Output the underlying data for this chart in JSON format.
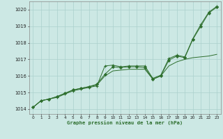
{
  "title": "Graphe pression niveau de la mer (hPa)",
  "bg_color": "#cce8e4",
  "grid_color": "#aad0cc",
  "line_color": "#2d6e2d",
  "x_ticks": [
    0,
    1,
    2,
    3,
    4,
    5,
    6,
    7,
    8,
    9,
    10,
    11,
    12,
    13,
    14,
    15,
    16,
    17,
    18,
    19,
    20,
    21,
    22,
    23
  ],
  "ylim": [
    1013.7,
    1020.5
  ],
  "yticks": [
    1014,
    1015,
    1016,
    1017,
    1018,
    1019,
    1020
  ],
  "series1_x": [
    0,
    1,
    2,
    3,
    4,
    5,
    6,
    7,
    8,
    9,
    10,
    11,
    12,
    13,
    14,
    15,
    16,
    17,
    18,
    19,
    20,
    21,
    22,
    23
  ],
  "series1_y": [
    1014.1,
    1014.5,
    1014.6,
    1014.7,
    1014.9,
    1015.1,
    1015.2,
    1015.3,
    1015.4,
    1016.6,
    1016.65,
    1016.55,
    1016.6,
    1016.6,
    1016.6,
    1015.85,
    1016.05,
    1017.05,
    1017.25,
    1017.15,
    1018.25,
    1019.1,
    1019.85,
    1020.2
  ],
  "series2_x": [
    0,
    1,
    2,
    3,
    4,
    5,
    6,
    7,
    8,
    9,
    10,
    11,
    12,
    13,
    14,
    15,
    16,
    17,
    18,
    19,
    20,
    21,
    22,
    23
  ],
  "series2_y": [
    1014.1,
    1014.5,
    1014.6,
    1014.75,
    1014.95,
    1015.15,
    1015.25,
    1015.35,
    1015.45,
    1016.0,
    1016.3,
    1016.35,
    1016.4,
    1016.4,
    1016.4,
    1015.8,
    1016.0,
    1016.6,
    1016.85,
    1017.0,
    1017.1,
    1017.15,
    1017.2,
    1017.3
  ],
  "series3_x": [
    0,
    1,
    2,
    3,
    4,
    5,
    6,
    7,
    8,
    9,
    10,
    11,
    12,
    13,
    14,
    15,
    16,
    17,
    18,
    19,
    20,
    21,
    22,
    23
  ],
  "series3_y": [
    1014.1,
    1014.5,
    1014.6,
    1014.75,
    1014.95,
    1015.15,
    1015.25,
    1015.35,
    1015.5,
    1016.1,
    1016.55,
    1016.5,
    1016.55,
    1016.55,
    1016.5,
    1015.8,
    1016.0,
    1016.95,
    1017.2,
    1017.1,
    1018.2,
    1019.0,
    1019.8,
    1020.15
  ]
}
